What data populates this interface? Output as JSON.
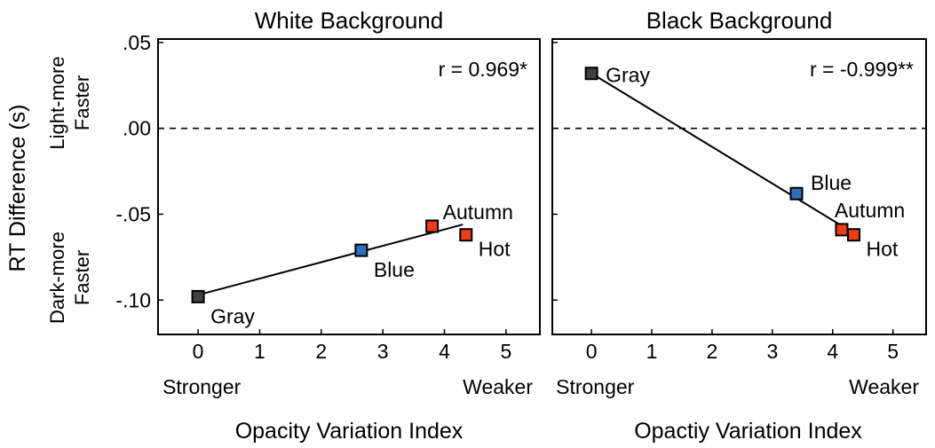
{
  "y_axis": {
    "label": "RT Difference (s)",
    "ticks": [
      0.05,
      0.0,
      -0.05,
      -0.1
    ],
    "tick_labels": [
      ".05",
      ".00",
      "-.05",
      "-.10"
    ],
    "top_annotation": [
      "Light-more",
      "Faster"
    ],
    "bottom_annotation": [
      "Dark-more",
      "Faster"
    ]
  },
  "chart_data": [
    {
      "type": "scatter",
      "title": "White Background",
      "xlabel": "Opacity Variation Index",
      "ylabel": "RT Difference (s)",
      "x_ticks": [
        0,
        1,
        2,
        3,
        4,
        5
      ],
      "x_end_labels": [
        "Stronger",
        "Weaker"
      ],
      "xlim": [
        -0.65,
        5.55
      ],
      "ylim": [
        -0.12,
        0.052
      ],
      "reference_line_y": 0,
      "correlation": "r = 0.969*",
      "points": [
        {
          "label": "Gray",
          "x": 0.0,
          "y": -0.098,
          "color": "#404040"
        },
        {
          "label": "Blue",
          "x": 2.65,
          "y": -0.071,
          "color": "#2f6fba"
        },
        {
          "label": "Autumn",
          "x": 3.8,
          "y": -0.057,
          "color": "#f03c14"
        },
        {
          "label": "Hot",
          "x": 4.35,
          "y": -0.062,
          "color": "#f03c14"
        }
      ],
      "fit_line": {
        "x": [
          0.0,
          4.3
        ],
        "y": [
          -0.097,
          -0.056
        ]
      }
    },
    {
      "type": "scatter",
      "title": "Black Background",
      "xlabel": "Opactiy Variation Index",
      "ylabel": "",
      "x_ticks": [
        0,
        1,
        2,
        3,
        4,
        5
      ],
      "x_end_labels": [
        "Stronger",
        "Weaker"
      ],
      "xlim": [
        -0.65,
        5.55
      ],
      "ylim": [
        -0.12,
        0.052
      ],
      "reference_line_y": 0,
      "correlation": "r = -0.999**",
      "points": [
        {
          "label": "Gray",
          "x": 0.0,
          "y": 0.032,
          "color": "#404040"
        },
        {
          "label": "Blue",
          "x": 3.4,
          "y": -0.038,
          "color": "#2f6fba"
        },
        {
          "label": "Autumn",
          "x": 4.15,
          "y": -0.059,
          "color": "#f03c14"
        },
        {
          "label": "Hot",
          "x": 4.35,
          "y": -0.062,
          "color": "#f03c14"
        }
      ],
      "fit_line": {
        "x": [
          0.0,
          4.35
        ],
        "y": [
          0.032,
          -0.061
        ]
      }
    }
  ]
}
